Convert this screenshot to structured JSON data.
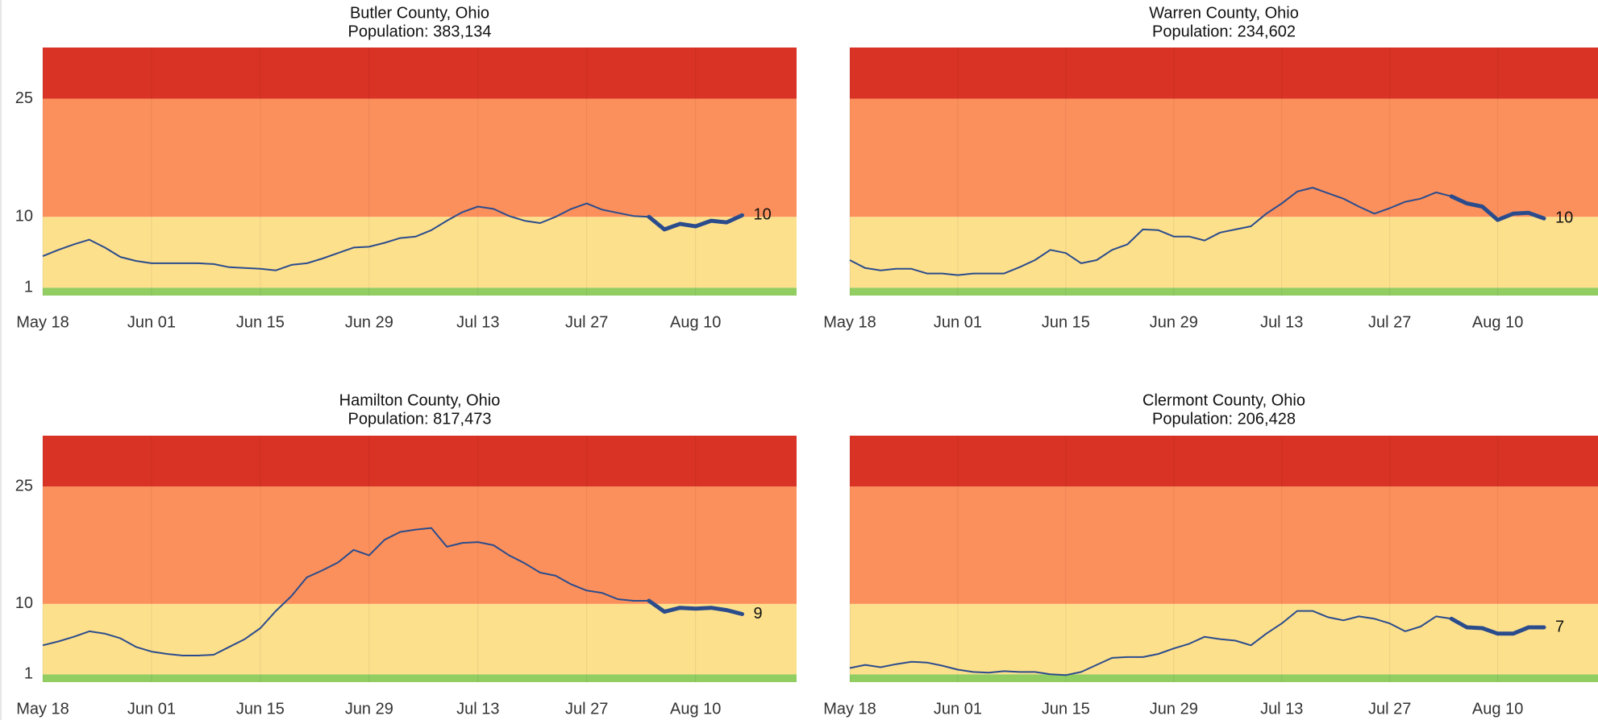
{
  "chart_data": [
    {
      "type": "line",
      "title": "Butler County, Ohio",
      "subtitle": "Population: 383,134",
      "x": [
        "05-18",
        "05-20",
        "05-22",
        "05-24",
        "05-26",
        "05-28",
        "05-30",
        "06-01",
        "06-03",
        "06-05",
        "06-07",
        "06-09",
        "06-11",
        "06-13",
        "06-15",
        "06-17",
        "06-19",
        "06-21",
        "06-23",
        "06-25",
        "06-27",
        "06-29",
        "07-01",
        "07-03",
        "07-05",
        "07-07",
        "07-09",
        "07-11",
        "07-13",
        "07-15",
        "07-17",
        "07-19",
        "07-21",
        "07-23",
        "07-25",
        "07-27",
        "07-29",
        "07-31",
        "08-02",
        "08-04",
        "08-06",
        "08-08",
        "08-10",
        "08-12",
        "08-14",
        "08-16"
      ],
      "values": [
        5.0,
        5.8,
        6.5,
        7.1,
        6.1,
        4.9,
        4.4,
        4.1,
        4.1,
        4.1,
        4.1,
        4.0,
        3.6,
        3.5,
        3.4,
        3.2,
        3.9,
        4.1,
        4.7,
        5.4,
        6.1,
        6.2,
        6.7,
        7.3,
        7.5,
        8.3,
        9.5,
        10.6,
        11.3,
        11.0,
        10.1,
        9.5,
        9.2,
        10.0,
        11.0,
        11.7,
        10.9,
        10.5,
        10.1,
        10.0,
        8.4,
        9.1,
        8.8,
        9.5,
        9.3,
        10.2
      ],
      "end_label": 10,
      "highlight_from": "08-03",
      "color": "#2b4c8c",
      "xlim": [
        "05-18",
        "08-23"
      ],
      "xticks": [
        {
          "value": "05-18",
          "label": "May 18"
        },
        {
          "value": "06-01",
          "label": "Jun 01"
        },
        {
          "value": "06-15",
          "label": "Jun 15"
        },
        {
          "value": "06-29",
          "label": "Jun 29"
        },
        {
          "value": "07-13",
          "label": "Jul 13"
        },
        {
          "value": "07-27",
          "label": "Jul 27"
        },
        {
          "value": "08-10",
          "label": "Aug 10"
        }
      ],
      "ylim": [
        0,
        31.5
      ],
      "yticks": [
        1,
        10,
        25
      ],
      "bands": [
        {
          "from": 0,
          "to": 1,
          "color": "#92cd62"
        },
        {
          "from": 1,
          "to": 10,
          "color": "#fde08c"
        },
        {
          "from": 10,
          "to": 25,
          "color": "#fc905c"
        },
        {
          "from": 25,
          "to": 31.5,
          "color": "#d93325"
        }
      ]
    },
    {
      "type": "line",
      "title": "Warren County, Ohio",
      "subtitle": "Population: 234,602",
      "x": [
        "05-18",
        "05-20",
        "05-22",
        "05-24",
        "05-26",
        "05-28",
        "05-30",
        "06-01",
        "06-03",
        "06-05",
        "06-07",
        "06-09",
        "06-11",
        "06-13",
        "06-15",
        "06-17",
        "06-19",
        "06-21",
        "06-23",
        "06-25",
        "06-27",
        "06-29",
        "07-01",
        "07-03",
        "07-05",
        "07-07",
        "07-09",
        "07-11",
        "07-13",
        "07-15",
        "07-17",
        "07-19",
        "07-21",
        "07-23",
        "07-25",
        "07-27",
        "07-29",
        "07-31",
        "08-02",
        "08-04",
        "08-06",
        "08-08",
        "08-10",
        "08-12",
        "08-14",
        "08-16"
      ],
      "values": [
        4.5,
        3.5,
        3.2,
        3.4,
        3.4,
        2.8,
        2.8,
        2.6,
        2.8,
        2.8,
        2.8,
        3.6,
        4.5,
        5.8,
        5.4,
        4.1,
        4.5,
        5.8,
        6.5,
        8.4,
        8.3,
        7.5,
        7.5,
        7.0,
        8.0,
        8.4,
        8.8,
        10.4,
        11.7,
        13.2,
        13.7,
        13.0,
        12.3,
        11.3,
        10.4,
        11.1,
        11.9,
        12.3,
        13.1,
        12.6,
        11.7,
        11.3,
        9.6,
        10.4,
        10.5,
        9.8
      ],
      "end_label": 10,
      "highlight_from": "08-03",
      "color": "#2b4c8c",
      "xlim": [
        "05-18",
        "08-23"
      ],
      "xticks": [
        {
          "value": "05-18",
          "label": "May 18"
        },
        {
          "value": "06-01",
          "label": "Jun 01"
        },
        {
          "value": "06-15",
          "label": "Jun 15"
        },
        {
          "value": "06-29",
          "label": "Jun 29"
        },
        {
          "value": "07-13",
          "label": "Jul 13"
        },
        {
          "value": "07-27",
          "label": "Jul 27"
        },
        {
          "value": "08-10",
          "label": "Aug 10"
        }
      ],
      "ylim": [
        0,
        31.5
      ],
      "bands": [
        {
          "from": 0,
          "to": 1,
          "color": "#92cd62"
        },
        {
          "from": 1,
          "to": 10,
          "color": "#fde08c"
        },
        {
          "from": 10,
          "to": 25,
          "color": "#fc905c"
        },
        {
          "from": 25,
          "to": 31.5,
          "color": "#d93325"
        }
      ]
    },
    {
      "type": "line",
      "title": "Hamilton County, Ohio",
      "subtitle": "Population: 817,473",
      "x": [
        "05-18",
        "05-20",
        "05-22",
        "05-24",
        "05-26",
        "05-28",
        "05-30",
        "06-01",
        "06-03",
        "06-05",
        "06-07",
        "06-09",
        "06-11",
        "06-13",
        "06-15",
        "06-17",
        "06-19",
        "06-21",
        "06-23",
        "06-25",
        "06-27",
        "06-29",
        "07-01",
        "07-03",
        "07-05",
        "07-07",
        "07-09",
        "07-11",
        "07-13",
        "07-15",
        "07-17",
        "07-19",
        "07-21",
        "07-23",
        "07-25",
        "07-27",
        "07-29",
        "07-31",
        "08-02",
        "08-04",
        "08-06",
        "08-08",
        "08-10",
        "08-12",
        "08-14",
        "08-16"
      ],
      "values": [
        4.7,
        5.2,
        5.8,
        6.5,
        6.2,
        5.6,
        4.5,
        3.9,
        3.6,
        3.4,
        3.4,
        3.5,
        4.5,
        5.5,
        6.9,
        9.1,
        11.0,
        13.4,
        14.3,
        15.3,
        16.9,
        16.2,
        18.2,
        19.2,
        19.5,
        19.7,
        17.3,
        17.8,
        17.9,
        17.5,
        16.2,
        15.2,
        14.0,
        13.6,
        12.5,
        11.7,
        11.4,
        10.6,
        10.4,
        10.4,
        9.0,
        9.5,
        9.4,
        9.5,
        9.2,
        8.7
      ],
      "end_label": 9,
      "highlight_from": "08-03",
      "color": "#2b4c8c",
      "xlim": [
        "05-18",
        "08-23"
      ],
      "xticks": [
        {
          "value": "05-18",
          "label": "May 18"
        },
        {
          "value": "06-01",
          "label": "Jun 01"
        },
        {
          "value": "06-15",
          "label": "Jun 15"
        },
        {
          "value": "06-29",
          "label": "Jun 29"
        },
        {
          "value": "07-13",
          "label": "Jul 13"
        },
        {
          "value": "07-27",
          "label": "Jul 27"
        },
        {
          "value": "08-10",
          "label": "Aug 10"
        }
      ],
      "ylim": [
        0,
        31.5
      ],
      "yticks": [
        1,
        10,
        25
      ],
      "bands": [
        {
          "from": 0,
          "to": 1,
          "color": "#92cd62"
        },
        {
          "from": 1,
          "to": 10,
          "color": "#fde08c"
        },
        {
          "from": 10,
          "to": 25,
          "color": "#fc905c"
        },
        {
          "from": 25,
          "to": 31.5,
          "color": "#d93325"
        }
      ]
    },
    {
      "type": "line",
      "title": "Clermont County, Ohio",
      "subtitle": "Population: 206,428",
      "x": [
        "05-18",
        "05-20",
        "05-22",
        "05-24",
        "05-26",
        "05-28",
        "05-30",
        "06-01",
        "06-03",
        "06-05",
        "06-07",
        "06-09",
        "06-11",
        "06-13",
        "06-15",
        "06-17",
        "06-19",
        "06-21",
        "06-23",
        "06-25",
        "06-27",
        "06-29",
        "07-01",
        "07-03",
        "07-05",
        "07-07",
        "07-09",
        "07-11",
        "07-13",
        "07-15",
        "07-17",
        "07-19",
        "07-21",
        "07-23",
        "07-25",
        "07-27",
        "07-29",
        "07-31",
        "08-02",
        "08-04",
        "08-06",
        "08-08",
        "08-10",
        "08-12",
        "08-14",
        "08-16"
      ],
      "values": [
        1.8,
        2.2,
        1.9,
        2.3,
        2.6,
        2.5,
        2.1,
        1.6,
        1.3,
        1.2,
        1.4,
        1.3,
        1.3,
        1.0,
        0.9,
        1.3,
        2.2,
        3.1,
        3.2,
        3.2,
        3.6,
        4.3,
        4.9,
        5.8,
        5.5,
        5.3,
        4.7,
        6.2,
        7.5,
        9.1,
        9.1,
        8.3,
        7.9,
        8.4,
        8.1,
        7.5,
        6.5,
        7.1,
        8.4,
        8.1,
        7.0,
        6.9,
        6.2,
        6.2,
        7.0,
        7.0
      ],
      "end_label": 7,
      "highlight_from": "08-03",
      "color": "#2b4c8c",
      "xlim": [
        "05-18",
        "08-23"
      ],
      "xticks": [
        {
          "value": "05-18",
          "label": "May 18"
        },
        {
          "value": "06-01",
          "label": "Jun 01"
        },
        {
          "value": "06-15",
          "label": "Jun 15"
        },
        {
          "value": "06-29",
          "label": "Jun 29"
        },
        {
          "value": "07-13",
          "label": "Jul 13"
        },
        {
          "value": "07-27",
          "label": "Jul 27"
        },
        {
          "value": "08-10",
          "label": "Aug 10"
        }
      ],
      "ylim": [
        0,
        31.5
      ],
      "bands": [
        {
          "from": 0,
          "to": 1,
          "color": "#92cd62"
        },
        {
          "from": 1,
          "to": 10,
          "color": "#fde08c"
        },
        {
          "from": 10,
          "to": 25,
          "color": "#fc905c"
        },
        {
          "from": 25,
          "to": 31.5,
          "color": "#d93325"
        }
      ]
    }
  ]
}
